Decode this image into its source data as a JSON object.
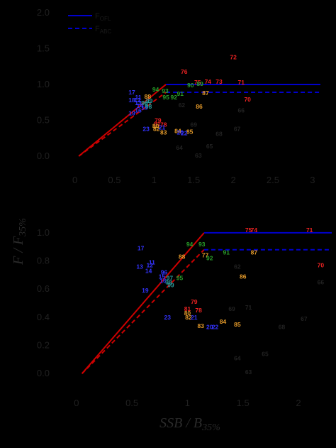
{
  "colors": {
    "background": "#000000",
    "ref_line": "#0000cc",
    "ramp_line": "#cc0000",
    "red": "#ee2222",
    "orange": "#e69b2a",
    "green": "#2aa02a",
    "blue": "#3333ff",
    "teal": "#2a9a9a",
    "gray": "#222222"
  },
  "axes": {
    "ylabel": "F / F",
    "ylabel_sub": "35%",
    "xlabel": "SSB / B",
    "xlabel_sub": "35%"
  },
  "chart_data": [
    {
      "type": "scatter",
      "panel": "top",
      "xlim": [
        -0.05,
        3.1
      ],
      "ylim": [
        -0.1,
        2.0
      ],
      "xticks": [
        "0",
        "0.5",
        "1",
        "1.5",
        "2",
        "2.5",
        "3"
      ],
      "yticks": [
        "0.0",
        "0.5",
        "1.0",
        "1.5",
        "2.0"
      ],
      "legend": [
        "F",
        "F"
      ],
      "legend_sub": [
        "OFL",
        "ABC"
      ],
      "legend_position": "top-left",
      "series": [
        {
          "name": "FOFL",
          "style": "solid",
          "color": "ref_line",
          "x": [
            1.15,
            3.1
          ],
          "y": [
            1.0,
            1.0
          ]
        },
        {
          "name": "FABC",
          "style": "dashed",
          "color": "ref_line",
          "x": [
            1.15,
            3.1
          ],
          "y": [
            0.89,
            0.89
          ]
        }
      ],
      "ramps": [
        {
          "style": "solid",
          "x": [
            0.05,
            1.15
          ],
          "y": [
            0.0,
            1.0
          ]
        },
        {
          "style": "dashed",
          "x": [
            0.05,
            1.15
          ],
          "y": [
            0.0,
            0.89
          ]
        }
      ],
      "points": [
        {
          "label": "72",
          "x": 2.0,
          "y": 1.38,
          "color": "red"
        },
        {
          "label": "76",
          "x": 1.38,
          "y": 1.18,
          "color": "red"
        },
        {
          "label": "74",
          "x": 1.68,
          "y": 1.04,
          "color": "red"
        },
        {
          "label": "73",
          "x": 1.82,
          "y": 1.04,
          "color": "red"
        },
        {
          "label": "71",
          "x": 2.1,
          "y": 1.03,
          "color": "red"
        },
        {
          "label": "75",
          "x": 1.55,
          "y": 1.03,
          "color": "red"
        },
        {
          "label": "70",
          "x": 2.18,
          "y": 0.79,
          "color": "red"
        },
        {
          "label": "79",
          "x": 1.05,
          "y": 0.5,
          "color": "red"
        },
        {
          "label": "78",
          "x": 1.12,
          "y": 0.44,
          "color": "red"
        },
        {
          "label": "81",
          "x": 1.04,
          "y": 0.45,
          "color": "red"
        },
        {
          "label": "83",
          "x": 1.12,
          "y": 0.33,
          "color": "orange"
        },
        {
          "label": "84",
          "x": 1.3,
          "y": 0.35,
          "color": "orange"
        },
        {
          "label": "85",
          "x": 1.45,
          "y": 0.34,
          "color": "orange"
        },
        {
          "label": "86",
          "x": 1.57,
          "y": 0.69,
          "color": "orange"
        },
        {
          "label": "87",
          "x": 1.65,
          "y": 0.88,
          "color": "orange"
        },
        {
          "label": "88",
          "x": 0.92,
          "y": 0.83,
          "color": "orange"
        },
        {
          "label": "80",
          "x": 1.02,
          "y": 0.42,
          "color": "orange"
        },
        {
          "label": "82",
          "x": 1.03,
          "y": 0.38,
          "color": "orange"
        },
        {
          "label": "89",
          "x": 1.58,
          "y": 1.01,
          "color": "green"
        },
        {
          "label": "90",
          "x": 1.46,
          "y": 0.99,
          "color": "green"
        },
        {
          "label": "91",
          "x": 1.33,
          "y": 0.87,
          "color": "green"
        },
        {
          "label": "92",
          "x": 1.25,
          "y": 0.82,
          "color": "green"
        },
        {
          "label": "93",
          "x": 1.14,
          "y": 0.91,
          "color": "green"
        },
        {
          "label": "94",
          "x": 1.02,
          "y": 0.93,
          "color": "green"
        },
        {
          "label": "95",
          "x": 1.15,
          "y": 0.82,
          "color": "green"
        },
        {
          "label": "17",
          "x": 0.72,
          "y": 0.89,
          "color": "blue"
        },
        {
          "label": "18",
          "x": 0.72,
          "y": 0.78,
          "color": "blue"
        },
        {
          "label": "19",
          "x": 0.72,
          "y": 0.6,
          "color": "blue"
        },
        {
          "label": "11",
          "x": 0.8,
          "y": 0.82,
          "color": "blue"
        },
        {
          "label": "12",
          "x": 0.79,
          "y": 0.78,
          "color": "blue"
        },
        {
          "label": "13",
          "x": 0.8,
          "y": 0.74,
          "color": "blue"
        },
        {
          "label": "14",
          "x": 0.82,
          "y": 0.7,
          "color": "blue"
        },
        {
          "label": "15",
          "x": 0.88,
          "y": 0.68,
          "color": "blue"
        },
        {
          "label": "16",
          "x": 0.8,
          "y": 0.64,
          "color": "blue"
        },
        {
          "label": "20",
          "x": 1.33,
          "y": 0.33,
          "color": "blue"
        },
        {
          "label": "21",
          "x": 1.1,
          "y": 0.4,
          "color": "blue"
        },
        {
          "label": "22",
          "x": 1.38,
          "y": 0.32,
          "color": "blue"
        },
        {
          "label": "23",
          "x": 0.9,
          "y": 0.38,
          "color": "blue"
        },
        {
          "label": "96",
          "x": 0.88,
          "y": 0.74,
          "color": "teal"
        },
        {
          "label": "97",
          "x": 0.92,
          "y": 0.72,
          "color": "teal"
        },
        {
          "label": "98",
          "x": 0.93,
          "y": 0.69,
          "color": "teal"
        },
        {
          "label": "99",
          "x": 0.94,
          "y": 0.77,
          "color": "teal"
        },
        {
          "label": "62",
          "x": 1.35,
          "y": 0.71,
          "color": "gray"
        },
        {
          "label": "63",
          "x": 1.56,
          "y": 0.01,
          "color": "gray"
        },
        {
          "label": "64",
          "x": 1.32,
          "y": 0.12,
          "color": "gray"
        },
        {
          "label": "65",
          "x": 1.7,
          "y": 0.14,
          "color": "gray"
        },
        {
          "label": "66",
          "x": 2.1,
          "y": 0.64,
          "color": "gray"
        },
        {
          "label": "67",
          "x": 2.05,
          "y": 0.38,
          "color": "gray"
        },
        {
          "label": "68",
          "x": 1.82,
          "y": 0.31,
          "color": "gray"
        },
        {
          "label": "69",
          "x": 1.5,
          "y": 0.44,
          "color": "gray"
        }
      ]
    },
    {
      "type": "scatter",
      "panel": "bottom",
      "xlim": [
        -0.05,
        2.3
      ],
      "ylim": [
        -0.1,
        1.05
      ],
      "xticks": [
        "0",
        "0.5",
        "1",
        "1.5",
        "2"
      ],
      "yticks": [
        "0.0",
        "0.2",
        "0.4",
        "0.6",
        "0.8",
        "1.0"
      ],
      "series": [
        {
          "name": "FOFL",
          "style": "solid",
          "color": "ref_line",
          "x": [
            1.15,
            2.3
          ],
          "y": [
            1.0,
            1.0
          ]
        },
        {
          "name": "FABC",
          "style": "dashed",
          "color": "ref_line",
          "x": [
            1.15,
            2.3
          ],
          "y": [
            0.88,
            0.88
          ]
        }
      ],
      "ramps": [
        {
          "style": "solid",
          "x": [
            0.05,
            1.15
          ],
          "y": [
            0.0,
            1.0
          ]
        },
        {
          "style": "dashed",
          "x": [
            0.05,
            1.15
          ],
          "y": [
            0.0,
            0.88
          ]
        }
      ],
      "points": [
        {
          "label": "74",
          "x": 1.6,
          "y": 1.02,
          "color": "red"
        },
        {
          "label": "75",
          "x": 1.55,
          "y": 1.02,
          "color": "red"
        },
        {
          "label": "71",
          "x": 2.1,
          "y": 1.02,
          "color": "red"
        },
        {
          "label": "70",
          "x": 2.2,
          "y": 0.77,
          "color": "red"
        },
        {
          "label": "79",
          "x": 1.06,
          "y": 0.51,
          "color": "red"
        },
        {
          "label": "78",
          "x": 1.1,
          "y": 0.45,
          "color": "red"
        },
        {
          "label": "81",
          "x": 1.0,
          "y": 0.46,
          "color": "red"
        },
        {
          "label": "80",
          "x": 1.0,
          "y": 0.43,
          "color": "orange"
        },
        {
          "label": "82",
          "x": 1.01,
          "y": 0.4,
          "color": "orange"
        },
        {
          "label": "83",
          "x": 1.12,
          "y": 0.34,
          "color": "orange"
        },
        {
          "label": "84",
          "x": 1.32,
          "y": 0.37,
          "color": "orange"
        },
        {
          "label": "85",
          "x": 1.45,
          "y": 0.35,
          "color": "orange"
        },
        {
          "label": "86",
          "x": 1.5,
          "y": 0.69,
          "color": "orange"
        },
        {
          "label": "87",
          "x": 1.6,
          "y": 0.86,
          "color": "orange"
        },
        {
          "label": "88",
          "x": 0.95,
          "y": 0.83,
          "color": "orange"
        },
        {
          "label": "77",
          "x": 1.16,
          "y": 0.84,
          "color": "orange"
        },
        {
          "label": "91",
          "x": 1.35,
          "y": 0.86,
          "color": "green"
        },
        {
          "label": "92",
          "x": 1.2,
          "y": 0.82,
          "color": "green"
        },
        {
          "label": "93",
          "x": 1.13,
          "y": 0.92,
          "color": "green"
        },
        {
          "label": "94",
          "x": 1.02,
          "y": 0.92,
          "color": "green"
        },
        {
          "label": "95",
          "x": 0.93,
          "y": 0.68,
          "color": "green"
        },
        {
          "label": "96",
          "x": 0.79,
          "y": 0.72,
          "color": "blue"
        },
        {
          "label": "17",
          "x": 0.58,
          "y": 0.89,
          "color": "blue"
        },
        {
          "label": "11",
          "x": 0.68,
          "y": 0.79,
          "color": "blue"
        },
        {
          "label": "12",
          "x": 0.66,
          "y": 0.77,
          "color": "blue"
        },
        {
          "label": "13",
          "x": 0.57,
          "y": 0.76,
          "color": "blue"
        },
        {
          "label": "14",
          "x": 0.65,
          "y": 0.73,
          "color": "blue"
        },
        {
          "label": "15",
          "x": 0.77,
          "y": 0.69,
          "color": "blue"
        },
        {
          "label": "16",
          "x": 0.78,
          "y": 0.66,
          "color": "blue"
        },
        {
          "label": "19",
          "x": 0.62,
          "y": 0.59,
          "color": "blue"
        },
        {
          "label": "20",
          "x": 1.2,
          "y": 0.33,
          "color": "blue"
        },
        {
          "label": "21",
          "x": 1.06,
          "y": 0.4,
          "color": "blue"
        },
        {
          "label": "22",
          "x": 1.25,
          "y": 0.33,
          "color": "blue"
        },
        {
          "label": "23",
          "x": 0.82,
          "y": 0.4,
          "color": "blue"
        },
        {
          "label": "97",
          "x": 0.84,
          "y": 0.68,
          "color": "teal"
        },
        {
          "label": "98",
          "x": 0.83,
          "y": 0.65,
          "color": "teal"
        },
        {
          "label": "99",
          "x": 0.85,
          "y": 0.63,
          "color": "teal"
        },
        {
          "label": "62",
          "x": 1.45,
          "y": 0.76,
          "color": "gray"
        },
        {
          "label": "63",
          "x": 1.55,
          "y": 0.01,
          "color": "gray"
        },
        {
          "label": "64",
          "x": 1.45,
          "y": 0.11,
          "color": "gray"
        },
        {
          "label": "65",
          "x": 1.7,
          "y": 0.14,
          "color": "gray"
        },
        {
          "label": "66",
          "x": 2.2,
          "y": 0.65,
          "color": "gray"
        },
        {
          "label": "67",
          "x": 2.05,
          "y": 0.39,
          "color": "gray"
        },
        {
          "label": "68",
          "x": 1.85,
          "y": 0.33,
          "color": "gray"
        },
        {
          "label": "69",
          "x": 1.4,
          "y": 0.46,
          "color": "gray"
        },
        {
          "label": "71",
          "x": 1.55,
          "y": 0.47,
          "color": "gray"
        }
      ]
    }
  ]
}
